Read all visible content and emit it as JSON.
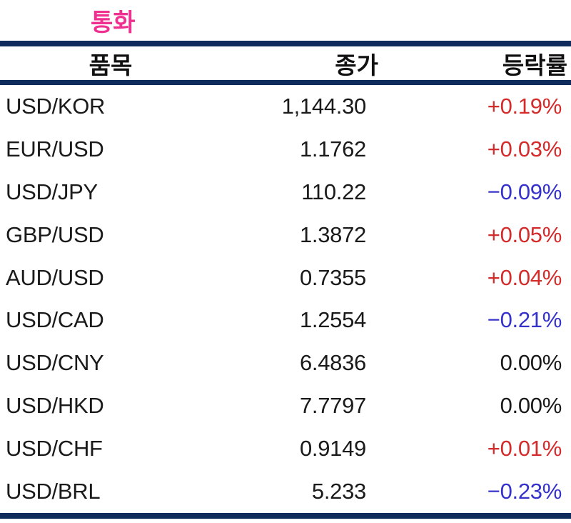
{
  "title": "통화",
  "title_color": "#f03090",
  "line_color": "#0e2b5c",
  "colors": {
    "up": "#d42b2b",
    "down": "#3532cb",
    "flat": "#1a1a1a"
  },
  "table": {
    "headers": [
      "품목",
      "종가",
      "등락률"
    ],
    "rows": [
      {
        "pair": "USD/KOR",
        "close": "1,144.30",
        "change": "+0.19%",
        "direction": "up"
      },
      {
        "pair": "EUR/USD",
        "close": "1.1762",
        "change": "+0.03%",
        "direction": "up"
      },
      {
        "pair": "USD/JPY",
        "close": "110.22",
        "change": "−0.09%",
        "direction": "down"
      },
      {
        "pair": "GBP/USD",
        "close": "1.3872",
        "change": "+0.05%",
        "direction": "up"
      },
      {
        "pair": "AUD/USD",
        "close": "0.7355",
        "change": "+0.04%",
        "direction": "up"
      },
      {
        "pair": "USD/CAD",
        "close": "1.2554",
        "change": "−0.21%",
        "direction": "down"
      },
      {
        "pair": "USD/CNY",
        "close": "6.4836",
        "change": "0.00%",
        "direction": "flat"
      },
      {
        "pair": "USD/HKD",
        "close": "7.7797",
        "change": "0.00%",
        "direction": "flat"
      },
      {
        "pair": "USD/CHF",
        "close": "0.9149",
        "change": "+0.01%",
        "direction": "up"
      },
      {
        "pair": "USD/BRL",
        "close": "5.233",
        "change": "−0.23%",
        "direction": "down"
      }
    ]
  },
  "chart_data": {
    "type": "table",
    "title": "통화",
    "columns": [
      "품목",
      "종가",
      "등락률"
    ],
    "rows": [
      [
        "USD/KOR",
        1144.3,
        "+0.19%"
      ],
      [
        "EUR/USD",
        1.1762,
        "+0.03%"
      ],
      [
        "USD/JPY",
        110.22,
        "-0.09%"
      ],
      [
        "GBP/USD",
        1.3872,
        "+0.05%"
      ],
      [
        "AUD/USD",
        0.7355,
        "+0.04%"
      ],
      [
        "USD/CAD",
        1.2554,
        "-0.21%"
      ],
      [
        "USD/CNY",
        6.4836,
        "0.00%"
      ],
      [
        "USD/HKD",
        7.7797,
        "0.00%"
      ],
      [
        "USD/CHF",
        0.9149,
        "+0.01%"
      ],
      [
        "USD/BRL",
        5.233,
        "-0.23%"
      ]
    ],
    "notes": "positive changes red, negative changes blue, zero changes black"
  }
}
